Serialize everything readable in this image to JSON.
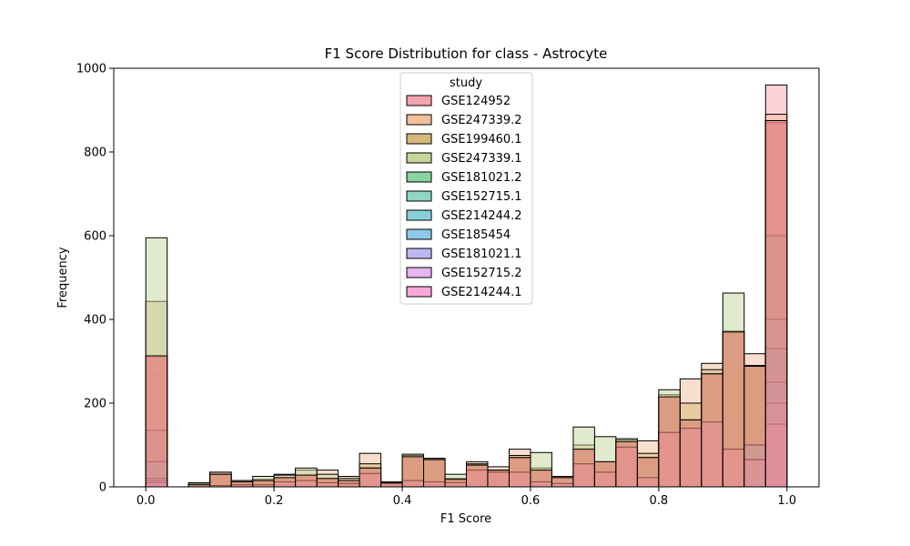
{
  "chart_data": {
    "type": "bar",
    "subtype": "overlaid-histogram",
    "title": "F1 Score Distribution for class - Astrocyte",
    "xlabel": "F1 Score",
    "ylabel": "Frequency",
    "xlim": [
      -0.05,
      1.05
    ],
    "ylim": [
      0,
      1000
    ],
    "xticks": [
      0.0,
      0.2,
      0.4,
      0.6,
      0.8,
      1.0
    ],
    "xtick_labels": [
      "0.0",
      "0.2",
      "0.4",
      "0.6",
      "0.8",
      "1.0"
    ],
    "yticks": [
      0,
      200,
      400,
      600,
      800,
      1000
    ],
    "ytick_labels": [
      "0",
      "200",
      "400",
      "600",
      "800",
      "1000"
    ],
    "grid": false,
    "legend": {
      "title": "study",
      "position": "upper center"
    },
    "bin_edges": [
      0.0,
      0.0333,
      0.0667,
      0.1,
      0.1333,
      0.1667,
      0.2,
      0.2333,
      0.2667,
      0.3,
      0.3333,
      0.3667,
      0.4,
      0.4333,
      0.4667,
      0.5,
      0.5333,
      0.5667,
      0.6,
      0.6333,
      0.6667,
      0.7,
      0.7333,
      0.7667,
      0.8,
      0.8333,
      0.8667,
      0.9,
      0.9333,
      0.9667,
      1.0
    ],
    "series": [
      {
        "name": "GSE124952",
        "color": "#f7a3ad",
        "values": [
          270,
          0,
          0,
          0,
          0,
          0,
          0,
          0,
          0,
          0,
          0,
          0,
          0,
          0,
          0,
          0,
          0,
          0,
          0,
          0,
          0,
          0,
          0,
          0,
          0,
          0,
          0,
          0,
          0,
          960
        ]
      },
      {
        "name": "GSE247339.2",
        "color": "#f2c09b",
        "values": [
          310,
          0,
          5,
          35,
          15,
          18,
          30,
          40,
          40,
          25,
          80,
          10,
          75,
          65,
          20,
          60,
          48,
          90,
          40,
          25,
          90,
          60,
          112,
          110,
          215,
          258,
          295,
          370,
          318,
          890
        ]
      },
      {
        "name": "GSE199460.1",
        "color": "#d4b87a",
        "values": [
          443,
          0,
          8,
          35,
          12,
          15,
          22,
          28,
          20,
          15,
          55,
          10,
          72,
          68,
          18,
          55,
          40,
          75,
          45,
          25,
          100,
          60,
          108,
          80,
          220,
          200,
          280,
          372,
          288,
          870
        ]
      },
      {
        "name": "GSE247339.1",
        "color": "#c5d69b",
        "values": [
          595,
          0,
          10,
          30,
          15,
          25,
          28,
          45,
          30,
          20,
          45,
          12,
          78,
          68,
          30,
          52,
          40,
          70,
          82,
          22,
          143,
          120,
          115,
          70,
          232,
          160,
          270,
          463,
          290,
          330
        ]
      },
      {
        "name": "GSE181021.2",
        "color": "#88d4a0",
        "values": [
          135,
          0,
          0,
          0,
          0,
          0,
          0,
          0,
          0,
          0,
          0,
          0,
          0,
          0,
          0,
          0,
          0,
          0,
          0,
          0,
          0,
          0,
          0,
          0,
          0,
          0,
          0,
          0,
          0,
          600
        ]
      },
      {
        "name": "GSE152715.1",
        "color": "#8fd6c4",
        "values": [
          60,
          0,
          0,
          0,
          0,
          0,
          0,
          0,
          0,
          0,
          0,
          0,
          0,
          0,
          0,
          0,
          0,
          0,
          0,
          0,
          0,
          0,
          0,
          0,
          0,
          0,
          0,
          0,
          0,
          400
        ]
      },
      {
        "name": "GSE214244.2",
        "color": "#86cfd9",
        "values": [
          60,
          0,
          0,
          0,
          0,
          0,
          0,
          0,
          0,
          0,
          0,
          0,
          0,
          0,
          0,
          0,
          0,
          0,
          0,
          0,
          0,
          0,
          0,
          0,
          0,
          0,
          0,
          0,
          0,
          330
        ]
      },
      {
        "name": "GSE185454",
        "color": "#8fc9e8",
        "values": [
          20,
          0,
          0,
          0,
          0,
          0,
          0,
          0,
          0,
          0,
          0,
          0,
          0,
          0,
          0,
          0,
          0,
          0,
          0,
          0,
          0,
          0,
          0,
          0,
          0,
          0,
          0,
          0,
          100,
          250
        ]
      },
      {
        "name": "GSE181021.1",
        "color": "#bdb8f2",
        "values": [
          15,
          0,
          0,
          0,
          0,
          0,
          0,
          0,
          0,
          0,
          0,
          0,
          0,
          0,
          0,
          0,
          0,
          0,
          0,
          0,
          0,
          0,
          0,
          0,
          0,
          0,
          0,
          0,
          0,
          200
        ]
      },
      {
        "name": "GSE152715.2",
        "color": "#e5b5ee",
        "values": [
          10,
          0,
          0,
          0,
          0,
          0,
          0,
          0,
          0,
          0,
          0,
          0,
          0,
          0,
          0,
          0,
          0,
          0,
          0,
          0,
          0,
          0,
          0,
          0,
          0,
          0,
          0,
          0,
          0,
          150
        ]
      },
      {
        "name": "GSE214244.1",
        "color": "#f7a8d8",
        "values": [
          313,
          0,
          0,
          3,
          5,
          5,
          12,
          15,
          10,
          8,
          32,
          8,
          15,
          12,
          10,
          40,
          35,
          35,
          12,
          8,
          55,
          35,
          95,
          22,
          130,
          140,
          155,
          90,
          65,
          875
        ]
      }
    ],
    "overlay_color": "#e07a6e"
  }
}
